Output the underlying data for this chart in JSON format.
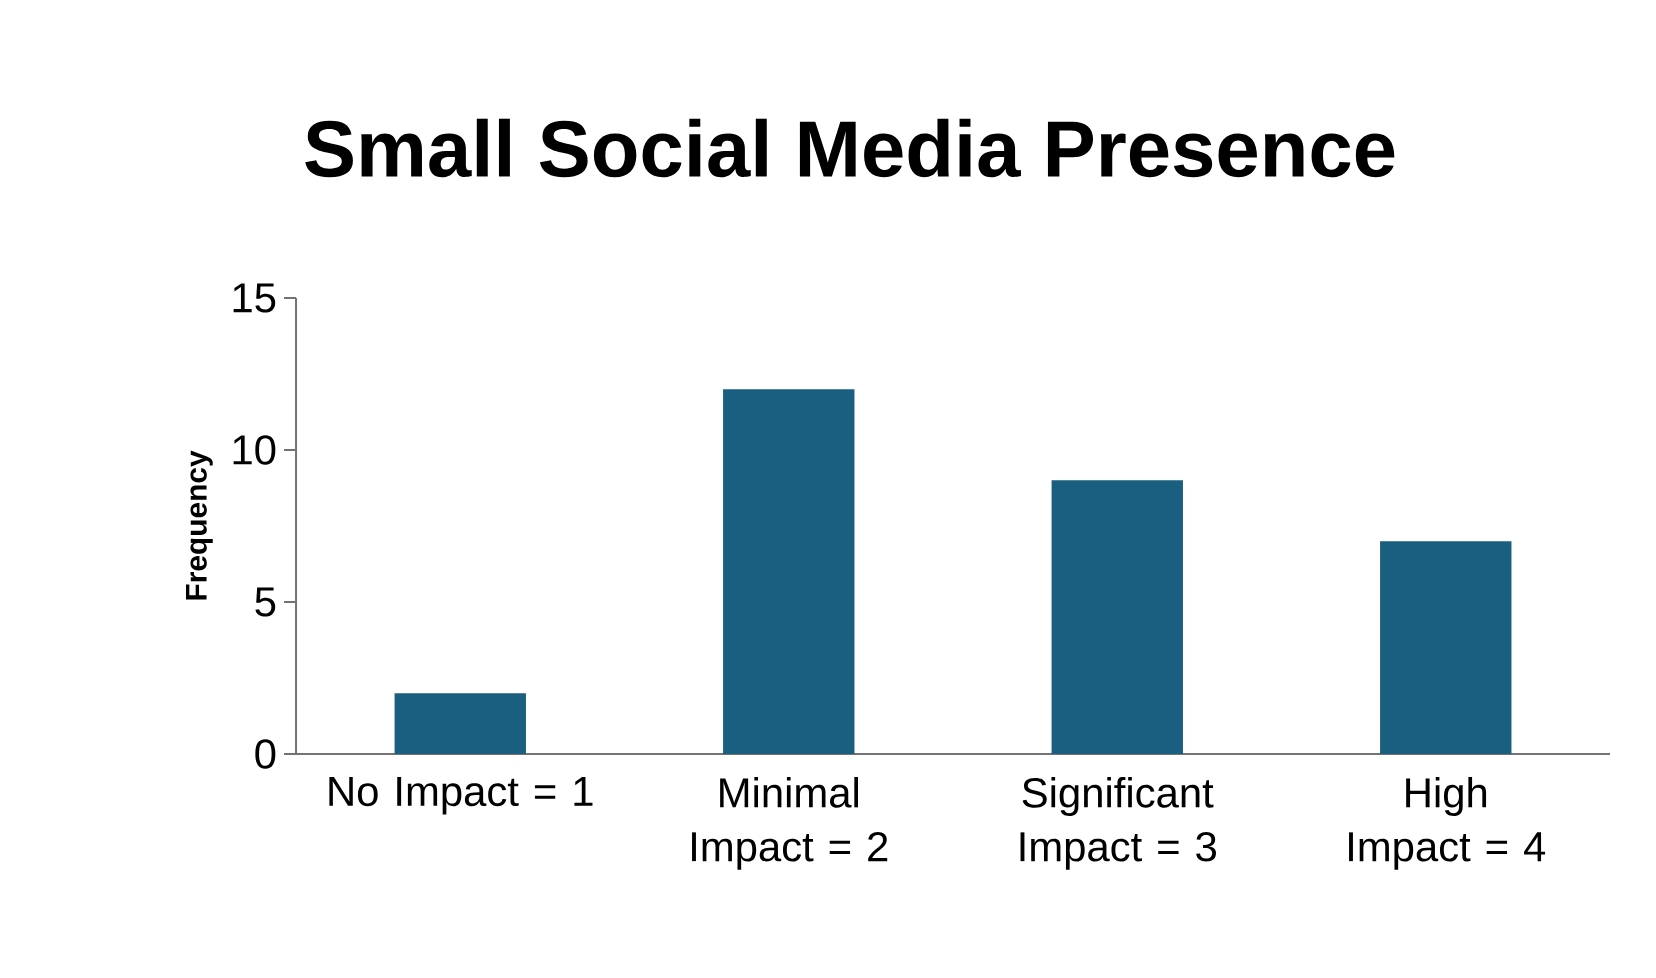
{
  "chart_data": {
    "type": "bar",
    "title": "Small Social Media Presence",
    "ylabel": "Frequency",
    "categories": [
      "No Impact = 1",
      "Minimal Impact = 2",
      "Significant Impact = 3",
      "High Impact = 4"
    ],
    "values": [
      2,
      12,
      9,
      7
    ],
    "color": "#1a5f80",
    "ylim": [
      0,
      15
    ],
    "yticks": [
      0,
      5,
      10,
      15
    ],
    "grid": false
  }
}
